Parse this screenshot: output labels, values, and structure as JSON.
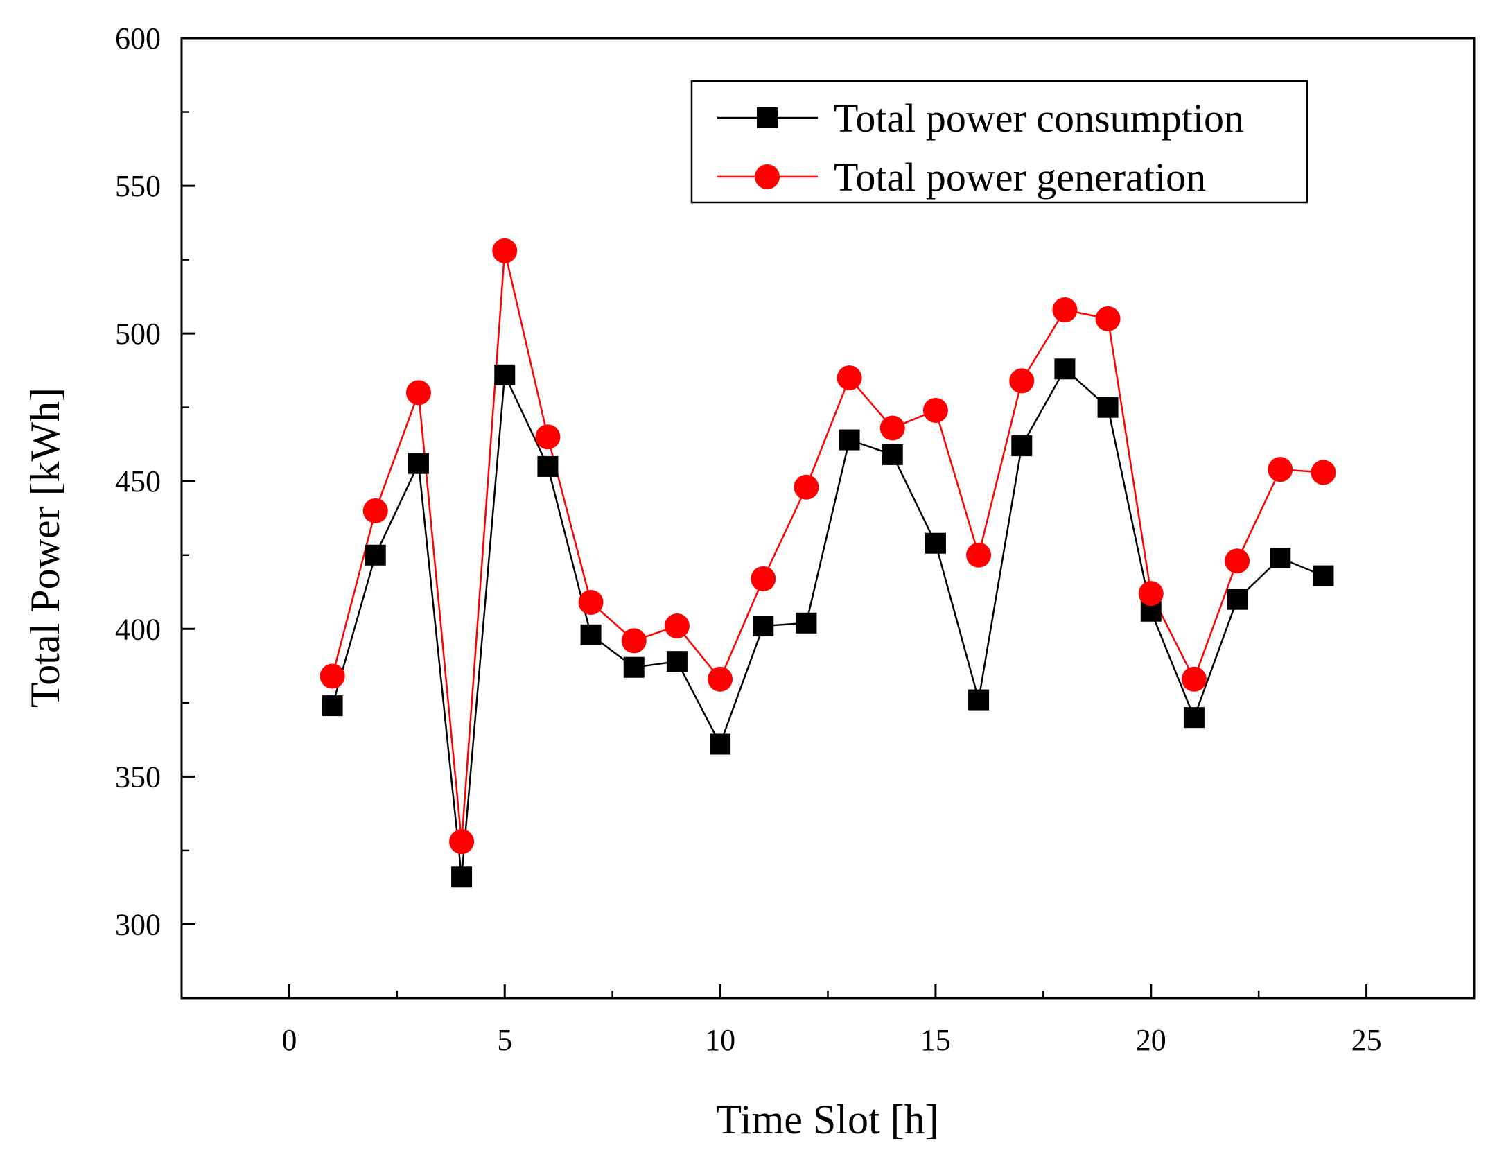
{
  "chart_data": {
    "type": "line",
    "title": "",
    "xlabel": "Time Slot [h]",
    "ylabel": "Total Power [kWh]",
    "xlim": [
      -2.5,
      27.5
    ],
    "ylim": [
      275,
      600
    ],
    "xticks": [
      0,
      5,
      10,
      15,
      20,
      25
    ],
    "yticks": [
      300,
      350,
      400,
      450,
      500,
      550,
      600
    ],
    "grid": false,
    "legend_position": "top-right",
    "x": [
      1,
      2,
      3,
      4,
      5,
      6,
      7,
      8,
      9,
      10,
      11,
      12,
      13,
      14,
      15,
      16,
      17,
      18,
      19,
      20,
      21,
      22,
      23,
      24
    ],
    "series": [
      {
        "name": "Total power consumption",
        "color": "#000000",
        "marker": "square",
        "values": [
          374,
          425,
          456,
          316,
          486,
          455,
          398,
          387,
          389,
          361,
          401,
          402,
          464,
          459,
          429,
          376,
          462,
          488,
          475,
          406,
          370,
          410,
          424,
          418
        ]
      },
      {
        "name": "Total power generation",
        "color": "#ff0000",
        "marker": "circle",
        "values": [
          384,
          440,
          480,
          328,
          528,
          465,
          409,
          396,
          401,
          383,
          417,
          448,
          485,
          468,
          474,
          425,
          484,
          508,
          505,
          412,
          383,
          423,
          454,
          453
        ]
      }
    ]
  }
}
